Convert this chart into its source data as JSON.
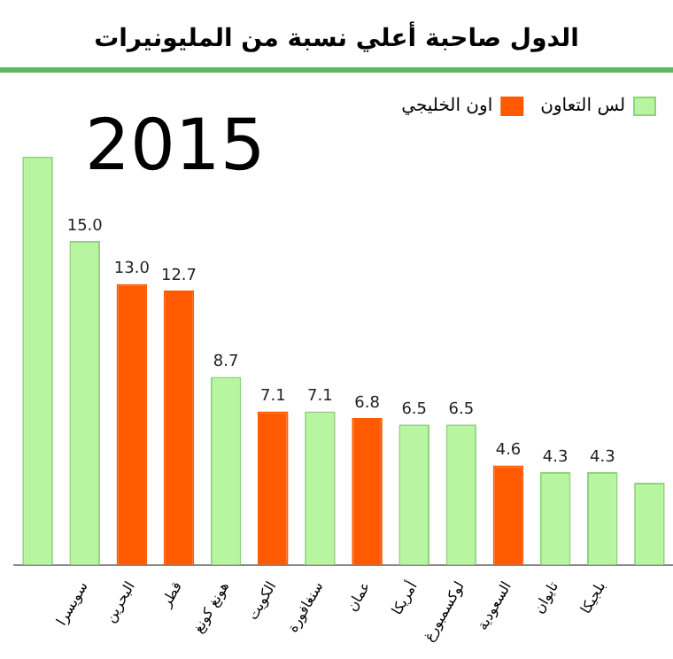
{
  "chart_data": {
    "type": "bar",
    "title": "الدول صاحبة أعلي نسبة من المليونيرات",
    "annotations": [
      "2015"
    ],
    "categories": [
      null,
      "سويسرا",
      "البحرين",
      "قطر",
      "هونغ كونغ",
      "الكويت",
      "سنغافورة",
      "عمان",
      "أمريكا",
      "لوكسمبورغ",
      "السعودية",
      "تايوان",
      "بلجيكا",
      null
    ],
    "series": [
      {
        "name": "لس التعاون",
        "color": "#b8f5a0",
        "values": [
          18.9,
          15.0,
          null,
          null,
          8.7,
          null,
          7.1,
          null,
          6.5,
          6.5,
          null,
          4.3,
          4.3,
          3.8
        ],
        "value_labels": [
          null,
          "15.0",
          null,
          null,
          "8.7",
          null,
          "7.1",
          null,
          "6.5",
          "6.5",
          null,
          "4.3",
          "4.3",
          null
        ]
      },
      {
        "name": "اون الخليجي",
        "color": "#ff5a00",
        "values": [
          null,
          null,
          13.0,
          12.7,
          null,
          7.1,
          null,
          6.8,
          null,
          null,
          4.6,
          null,
          null,
          null
        ],
        "value_labels": [
          null,
          null,
          "13.0",
          "12.7",
          null,
          "7.1",
          null,
          "6.8",
          null,
          null,
          "4.6",
          null,
          null,
          null
        ]
      }
    ],
    "legend": "top right",
    "grid": false
  }
}
